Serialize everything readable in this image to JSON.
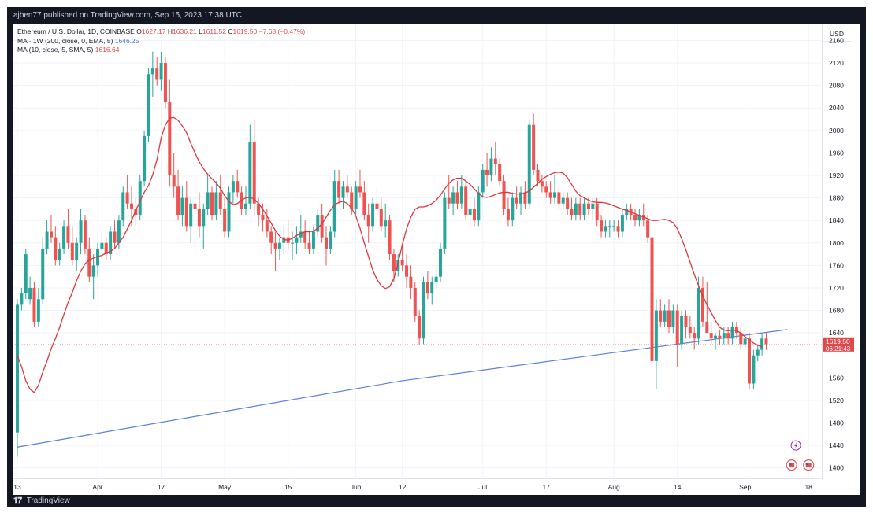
{
  "header": {
    "publish_info": "ajben77 published on TradingView.com, Sep 15, 2023 17:38 UTC"
  },
  "legend": {
    "symbol": "Ethereum / U.S. Dollar, 1D, COINBASE",
    "open_label": "O",
    "open": "1627.17",
    "high_label": "H",
    "high": "1636.21",
    "low_label": "L",
    "low": "1611.52",
    "close_label": "C",
    "close": "1619.50",
    "change": "−7.68 (−0.47%)",
    "ma1_label": "MA · 1W (200, close, 0, EMA, 5)",
    "ma1_value": "1646.25",
    "ma2_label": "MA (10, close, 5, SMA, 5)",
    "ma2_value": "1616.64"
  },
  "axis": {
    "currency": "USD"
  },
  "footer": {
    "brand": "TradingView"
  },
  "colors": {
    "up": "#26a69a",
    "down": "#ef5350",
    "ma_1w": "#5b7ee0",
    "ma_10": "#e0343d",
    "last_price": "#e0484a",
    "grid": "#f0f3fa"
  },
  "chart_data": {
    "type": "candlestick",
    "symbol": "Ethereum / U.S. Dollar",
    "interval": "1D",
    "exchange": "COINBASE",
    "ylim": [
      1380,
      2190
    ],
    "y_ticks": [
      2160,
      2120,
      2080,
      2040,
      2000,
      1960,
      1920,
      1880,
      1840,
      1800,
      1760,
      1720,
      1680,
      1640,
      1560,
      1520,
      1480,
      1440,
      1400
    ],
    "x_ticks": [
      "13",
      "Apr",
      "17",
      "May",
      "15",
      "Jun",
      "12",
      "Jul",
      "17",
      "Aug",
      "14",
      "Sep",
      "18"
    ],
    "x_tick_positions": [
      0,
      19,
      34,
      49,
      64,
      80,
      91,
      110,
      125,
      141,
      156,
      172,
      187
    ],
    "last_price": {
      "label": "1619.50",
      "countdown": "06:21:43",
      "value": 1619.5
    },
    "ma_1w_ema": {
      "name": "MA · 1W (200, close, 0, EMA, 5)",
      "points": [
        [
          0,
          1437
        ],
        [
          91,
          1555
        ],
        [
          182,
          1646
        ]
      ]
    },
    "ma_10_sma_values": [
      1600,
      1580,
      1555,
      1540,
      1534,
      1547,
      1570,
      1590,
      1612,
      1630,
      1650,
      1673,
      1694,
      1712,
      1733,
      1750,
      1763,
      1770,
      1773,
      1776,
      1778,
      1782,
      1785,
      1790,
      1800,
      1810,
      1825,
      1840,
      1858,
      1874,
      1890,
      1902,
      1921,
      1948,
      1987,
      2010,
      2022,
      2023,
      2018,
      2008,
      1996,
      1977,
      1960,
      1944,
      1932,
      1922,
      1914,
      1907,
      1897,
      1884,
      1874,
      1868,
      1870,
      1876,
      1880,
      1881,
      1878,
      1870,
      1860,
      1848,
      1835,
      1822,
      1812,
      1806,
      1805,
      1808,
      1813,
      1817,
      1820,
      1820,
      1821,
      1826,
      1834,
      1846,
      1858,
      1868,
      1872,
      1874,
      1870,
      1862,
      1848,
      1826,
      1800,
      1776,
      1752,
      1735,
      1724,
      1719,
      1722,
      1737,
      1765,
      1797,
      1825,
      1846,
      1860,
      1864,
      1864,
      1866,
      1870,
      1876,
      1885,
      1896,
      1906,
      1912,
      1915,
      1915,
      1910,
      1904,
      1896,
      1888,
      1882,
      1881,
      1883,
      1886,
      1889,
      1890,
      1890,
      1888,
      1887,
      1887,
      1889,
      1892,
      1899,
      1906,
      1913,
      1918,
      1922,
      1925,
      1926,
      1924,
      1916,
      1904,
      1892,
      1884,
      1880,
      1876,
      1873,
      1872,
      1872,
      1871,
      1869,
      1866,
      1863,
      1860,
      1858,
      1855,
      1852,
      1849,
      1846,
      1843,
      1840,
      1840,
      1841,
      1842,
      1840,
      1836,
      1825,
      1808,
      1788,
      1766,
      1744,
      1724,
      1706,
      1690,
      1676,
      1662,
      1650,
      1645,
      1644,
      1645,
      1644,
      1640,
      1633,
      1628,
      1622,
      1618,
      1615
    ],
    "ohlc": [
      [
        1463,
        1700,
        1420,
        1690
      ],
      [
        1690,
        1720,
        1680,
        1710
      ],
      [
        1710,
        1790,
        1700,
        1780
      ],
      [
        1700,
        1740,
        1690,
        1720
      ],
      [
        1720,
        1730,
        1650,
        1660
      ],
      [
        1660,
        1720,
        1650,
        1700
      ],
      [
        1700,
        1810,
        1690,
        1790
      ],
      [
        1790,
        1840,
        1780,
        1820
      ],
      [
        1820,
        1850,
        1800,
        1810
      ],
      [
        1810,
        1830,
        1760,
        1770
      ],
      [
        1770,
        1800,
        1760,
        1790
      ],
      [
        1790,
        1840,
        1780,
        1830
      ],
      [
        1830,
        1860,
        1790,
        1800
      ],
      [
        1800,
        1830,
        1760,
        1770
      ],
      [
        1770,
        1810,
        1750,
        1800
      ],
      [
        1800,
        1860,
        1780,
        1840
      ],
      [
        1840,
        1850,
        1780,
        1790
      ],
      [
        1790,
        1810,
        1730,
        1740
      ],
      [
        1740,
        1780,
        1700,
        1760
      ],
      [
        1760,
        1800,
        1740,
        1790
      ],
      [
        1790,
        1820,
        1770,
        1800
      ],
      [
        1800,
        1810,
        1770,
        1780
      ],
      [
        1780,
        1830,
        1770,
        1820
      ],
      [
        1820,
        1840,
        1790,
        1800
      ],
      [
        1800,
        1850,
        1790,
        1840
      ],
      [
        1840,
        1900,
        1830,
        1890
      ],
      [
        1890,
        1920,
        1860,
        1870
      ],
      [
        1870,
        1900,
        1830,
        1860
      ],
      [
        1860,
        1880,
        1830,
        1850
      ],
      [
        1850,
        1920,
        1840,
        1910
      ],
      [
        1910,
        2000,
        1900,
        1990
      ],
      [
        1990,
        2110,
        1980,
        2100
      ],
      [
        2100,
        2140,
        2060,
        2110
      ],
      [
        2110,
        2130,
        2080,
        2090
      ],
      [
        2090,
        2140,
        2070,
        2120
      ],
      [
        2120,
        2130,
        2040,
        2050
      ],
      [
        2050,
        2090,
        1900,
        1920
      ],
      [
        1920,
        1960,
        1880,
        1900
      ],
      [
        1900,
        1930,
        1840,
        1850
      ],
      [
        1850,
        1900,
        1830,
        1880
      ],
      [
        1880,
        1910,
        1820,
        1830
      ],
      [
        1830,
        1880,
        1800,
        1870
      ],
      [
        1870,
        1920,
        1840,
        1860
      ],
      [
        1860,
        1890,
        1810,
        1830
      ],
      [
        1830,
        1870,
        1790,
        1860
      ],
      [
        1860,
        1920,
        1850,
        1890
      ],
      [
        1890,
        1900,
        1840,
        1850
      ],
      [
        1850,
        1910,
        1840,
        1890
      ],
      [
        1890,
        1920,
        1850,
        1860
      ],
      [
        1860,
        1880,
        1810,
        1820
      ],
      [
        1820,
        1900,
        1810,
        1890
      ],
      [
        1890,
        1920,
        1870,
        1910
      ],
      [
        1910,
        1930,
        1880,
        1890
      ],
      [
        1890,
        1900,
        1850,
        1860
      ],
      [
        1860,
        1900,
        1850,
        1870
      ],
      [
        1870,
        2010,
        1860,
        1980
      ],
      [
        1980,
        2020,
        1850,
        1870
      ],
      [
        1870,
        1880,
        1830,
        1850
      ],
      [
        1850,
        1870,
        1820,
        1840
      ],
      [
        1840,
        1860,
        1810,
        1820
      ],
      [
        1820,
        1830,
        1780,
        1800
      ],
      [
        1800,
        1820,
        1750,
        1790
      ],
      [
        1790,
        1810,
        1770,
        1800
      ],
      [
        1800,
        1830,
        1780,
        1810
      ],
      [
        1810,
        1840,
        1790,
        1800
      ],
      [
        1800,
        1820,
        1770,
        1800
      ],
      [
        1800,
        1830,
        1780,
        1810
      ],
      [
        1810,
        1850,
        1800,
        1820
      ],
      [
        1820,
        1840,
        1790,
        1800
      ],
      [
        1800,
        1820,
        1780,
        1790
      ],
      [
        1790,
        1830,
        1780,
        1820
      ],
      [
        1820,
        1860,
        1810,
        1850
      ],
      [
        1850,
        1870,
        1800,
        1810
      ],
      [
        1810,
        1830,
        1760,
        1790
      ],
      [
        1790,
        1830,
        1780,
        1820
      ],
      [
        1820,
        1930,
        1810,
        1910
      ],
      [
        1910,
        1930,
        1870,
        1880
      ],
      [
        1880,
        1910,
        1860,
        1900
      ],
      [
        1900,
        1920,
        1880,
        1890
      ],
      [
        1890,
        1900,
        1850,
        1860
      ],
      [
        1860,
        1910,
        1850,
        1900
      ],
      [
        1900,
        1930,
        1880,
        1890
      ],
      [
        1890,
        1910,
        1840,
        1850
      ],
      [
        1850,
        1870,
        1800,
        1830
      ],
      [
        1830,
        1880,
        1820,
        1870
      ],
      [
        1870,
        1900,
        1850,
        1860
      ],
      [
        1860,
        1880,
        1820,
        1830
      ],
      [
        1830,
        1870,
        1810,
        1840
      ],
      [
        1840,
        1850,
        1770,
        1780
      ],
      [
        1780,
        1790,
        1730,
        1750
      ],
      [
        1750,
        1780,
        1740,
        1770
      ],
      [
        1770,
        1800,
        1750,
        1760
      ],
      [
        1760,
        1780,
        1720,
        1740
      ],
      [
        1740,
        1760,
        1700,
        1720
      ],
      [
        1720,
        1730,
        1660,
        1670
      ],
      [
        1670,
        1680,
        1620,
        1630
      ],
      [
        1630,
        1740,
        1620,
        1730
      ],
      [
        1730,
        1750,
        1700,
        1710
      ],
      [
        1710,
        1740,
        1690,
        1730
      ],
      [
        1730,
        1760,
        1720,
        1740
      ],
      [
        1740,
        1800,
        1730,
        1790
      ],
      [
        1790,
        1890,
        1780,
        1880
      ],
      [
        1880,
        1920,
        1860,
        1870
      ],
      [
        1870,
        1900,
        1850,
        1890
      ],
      [
        1890,
        1910,
        1860,
        1870
      ],
      [
        1870,
        1920,
        1860,
        1900
      ],
      [
        1900,
        1910,
        1840,
        1850
      ],
      [
        1850,
        1880,
        1830,
        1860
      ],
      [
        1860,
        1880,
        1830,
        1840
      ],
      [
        1840,
        1900,
        1830,
        1890
      ],
      [
        1890,
        1940,
        1880,
        1930
      ],
      [
        1930,
        1960,
        1900,
        1920
      ],
      [
        1920,
        1970,
        1910,
        1950
      ],
      [
        1950,
        1980,
        1920,
        1940
      ],
      [
        1940,
        1950,
        1900,
        1910
      ],
      [
        1910,
        1920,
        1850,
        1860
      ],
      [
        1860,
        1880,
        1830,
        1840
      ],
      [
        1840,
        1890,
        1830,
        1880
      ],
      [
        1880,
        1900,
        1860,
        1870
      ],
      [
        1870,
        1900,
        1850,
        1890
      ],
      [
        1890,
        1910,
        1860,
        1870
      ],
      [
        1870,
        2020,
        1860,
        2010
      ],
      [
        2010,
        2030,
        1920,
        1930
      ],
      [
        1930,
        1940,
        1900,
        1910
      ],
      [
        1910,
        1920,
        1890,
        1900
      ],
      [
        1900,
        1910,
        1880,
        1890
      ],
      [
        1890,
        1910,
        1870,
        1880
      ],
      [
        1880,
        1920,
        1870,
        1890
      ],
      [
        1890,
        1900,
        1860,
        1870
      ],
      [
        1870,
        1890,
        1860,
        1880
      ],
      [
        1880,
        1890,
        1850,
        1860
      ],
      [
        1860,
        1880,
        1840,
        1850
      ],
      [
        1850,
        1880,
        1840,
        1870
      ],
      [
        1870,
        1880,
        1840,
        1850
      ],
      [
        1850,
        1880,
        1840,
        1870
      ],
      [
        1870,
        1880,
        1850,
        1860
      ],
      [
        1860,
        1880,
        1840,
        1870
      ],
      [
        1870,
        1880,
        1830,
        1840
      ],
      [
        1840,
        1850,
        1810,
        1820
      ],
      [
        1820,
        1840,
        1810,
        1830
      ],
      [
        1830,
        1840,
        1810,
        1830
      ],
      [
        1830,
        1840,
        1820,
        1830
      ],
      [
        1830,
        1840,
        1810,
        1820
      ],
      [
        1820,
        1860,
        1810,
        1850
      ],
      [
        1850,
        1870,
        1840,
        1860
      ],
      [
        1860,
        1870,
        1840,
        1850
      ],
      [
        1850,
        1860,
        1830,
        1840
      ],
      [
        1840,
        1860,
        1830,
        1850
      ],
      [
        1850,
        1870,
        1830,
        1840
      ],
      [
        1840,
        1850,
        1800,
        1810
      ],
      [
        1810,
        1820,
        1580,
        1590
      ],
      [
        1590,
        1700,
        1540,
        1680
      ],
      [
        1680,
        1700,
        1650,
        1660
      ],
      [
        1660,
        1690,
        1650,
        1680
      ],
      [
        1680,
        1700,
        1640,
        1650
      ],
      [
        1650,
        1690,
        1640,
        1680
      ],
      [
        1680,
        1690,
        1580,
        1620
      ],
      [
        1620,
        1680,
        1610,
        1670
      ],
      [
        1670,
        1680,
        1630,
        1650
      ],
      [
        1650,
        1670,
        1630,
        1640
      ],
      [
        1640,
        1650,
        1610,
        1630
      ],
      [
        1630,
        1740,
        1620,
        1720
      ],
      [
        1720,
        1740,
        1650,
        1660
      ],
      [
        1660,
        1730,
        1640,
        1640
      ],
      [
        1640,
        1660,
        1620,
        1630
      ],
      [
        1630,
        1640,
        1610,
        1635
      ],
      [
        1635,
        1645,
        1620,
        1630
      ],
      [
        1630,
        1650,
        1620,
        1640
      ],
      [
        1640,
        1650,
        1620,
        1630
      ],
      [
        1630,
        1660,
        1620,
        1650
      ],
      [
        1650,
        1660,
        1630,
        1640
      ],
      [
        1640,
        1650,
        1610,
        1620
      ],
      [
        1620,
        1640,
        1610,
        1630
      ],
      [
        1630,
        1640,
        1540,
        1550
      ],
      [
        1550,
        1610,
        1540,
        1600
      ],
      [
        1600,
        1620,
        1590,
        1610
      ],
      [
        1610,
        1640,
        1600,
        1630
      ],
      [
        1630,
        1640,
        1610,
        1620
      ]
    ]
  }
}
